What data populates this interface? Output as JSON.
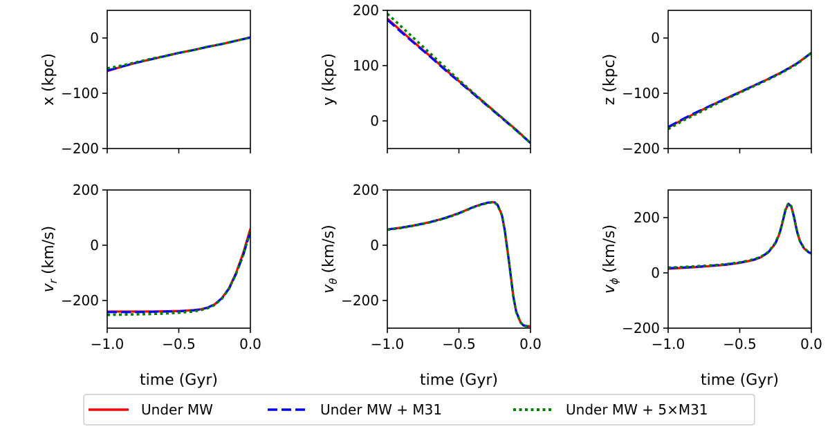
{
  "legend": {
    "entries": [
      {
        "label": "Under MW",
        "color": "#ff0000",
        "style": "solid"
      },
      {
        "label": "Under MW + M31",
        "color": "#0000ff",
        "style": "dashed"
      },
      {
        "label": "Under MW + 5×M31",
        "color": "#008000",
        "style": "dotted"
      }
    ],
    "placement": "bottom-center"
  },
  "chart_data": [
    {
      "type": "line",
      "ylabel": "x (kpc)",
      "xlabel": "",
      "xlim": [
        -1.0,
        0.0
      ],
      "ylim": [
        -200,
        50
      ],
      "xticks": [
        -1.0,
        -0.5,
        0.0
      ],
      "yticks": [
        -200,
        -100,
        0
      ],
      "ytick_labels": [
        "−200",
        "−100",
        "0"
      ],
      "xtick_labels": [],
      "x": [
        -1.0,
        -0.9,
        -0.8,
        -0.7,
        -0.6,
        -0.5,
        -0.4,
        -0.3,
        -0.2,
        -0.1,
        0.0
      ],
      "series": [
        {
          "values": [
            -60,
            -52,
            -45,
            -39,
            -33,
            -27,
            -22,
            -16,
            -11,
            -5,
            1
          ]
        },
        {
          "values": [
            -59,
            -52,
            -45,
            -39,
            -33,
            -27,
            -22,
            -16,
            -11,
            -5,
            1
          ]
        },
        {
          "values": [
            -55,
            -50,
            -44,
            -38,
            -33,
            -27,
            -22,
            -16,
            -11,
            -5,
            1
          ]
        }
      ]
    },
    {
      "type": "line",
      "ylabel": "y (kpc)",
      "xlabel": "",
      "xlim": [
        -1.0,
        0.0
      ],
      "ylim": [
        -50,
        200
      ],
      "xticks": [
        -1.0,
        -0.5,
        0.0
      ],
      "yticks": [
        0,
        100,
        200
      ],
      "ytick_labels": [
        "0",
        "100",
        "200"
      ],
      "xtick_labels": [],
      "x": [
        -1.0,
        -0.9,
        -0.8,
        -0.7,
        -0.6,
        -0.5,
        -0.4,
        -0.3,
        -0.2,
        -0.1,
        0.0
      ],
      "series": [
        {
          "values": [
            185,
            162,
            139,
            117,
            94,
            72,
            50,
            28,
            6,
            -16,
            -40
          ]
        },
        {
          "values": [
            183,
            160,
            138,
            116,
            93,
            71,
            49,
            27,
            5,
            -17,
            -40
          ]
        },
        {
          "values": [
            194,
            170,
            146,
            122,
            98,
            74,
            51,
            28,
            6,
            -17,
            -40
          ]
        }
      ]
    },
    {
      "type": "line",
      "ylabel": "z (kpc)",
      "xlabel": "",
      "xlim": [
        -1.0,
        0.0
      ],
      "ylim": [
        -200,
        50
      ],
      "xticks": [
        -1.0,
        -0.5,
        0.0
      ],
      "yticks": [
        -200,
        -100,
        0
      ],
      "ytick_labels": [
        "−200",
        "−100",
        "0"
      ],
      "xtick_labels": [],
      "x": [
        -1.0,
        -0.9,
        -0.8,
        -0.7,
        -0.6,
        -0.5,
        -0.4,
        -0.3,
        -0.2,
        -0.1,
        0.0
      ],
      "series": [
        {
          "values": [
            -162,
            -148,
            -135,
            -122,
            -110,
            -98,
            -86,
            -74,
            -61,
            -46,
            -27
          ]
        },
        {
          "values": [
            -161,
            -147,
            -134,
            -122,
            -110,
            -98,
            -86,
            -74,
            -61,
            -46,
            -27
          ]
        },
        {
          "values": [
            -165,
            -150,
            -137,
            -124,
            -111,
            -99,
            -87,
            -75,
            -62,
            -47,
            -27
          ]
        }
      ]
    },
    {
      "type": "line",
      "ylabel": "v_r (km/s)",
      "xlabel": "time (Gyr)",
      "xlim": [
        -1.0,
        0.0
      ],
      "ylim": [
        -300,
        200
      ],
      "xticks": [
        -1.0,
        -0.5,
        0.0
      ],
      "yticks": [
        -200,
        0,
        200
      ],
      "ytick_labels": [
        "−200",
        "0",
        "200"
      ],
      "xtick_labels": [
        "−1.0",
        "−0.5",
        "0.0"
      ],
      "x": [
        -1.0,
        -0.9,
        -0.8,
        -0.7,
        -0.6,
        -0.5,
        -0.4,
        -0.35,
        -0.3,
        -0.25,
        -0.2,
        -0.15,
        -0.1,
        -0.05,
        0.0
      ],
      "series": [
        {
          "values": [
            -240,
            -240,
            -240,
            -240,
            -239,
            -238,
            -235,
            -232,
            -226,
            -214,
            -192,
            -156,
            -100,
            -28,
            60
          ]
        },
        {
          "values": [
            -242,
            -242,
            -242,
            -241,
            -240,
            -239,
            -236,
            -232,
            -226,
            -214,
            -192,
            -158,
            -104,
            -36,
            50
          ]
        },
        {
          "values": [
            -252,
            -251,
            -250,
            -249,
            -247,
            -244,
            -240,
            -235,
            -228,
            -216,
            -194,
            -158,
            -104,
            -34,
            50
          ]
        }
      ]
    },
    {
      "type": "line",
      "ylabel": "v_θ (km/s)",
      "xlabel": "time (Gyr)",
      "xlim": [
        -1.0,
        0.0
      ],
      "ylim": [
        -300,
        200
      ],
      "xticks": [
        -1.0,
        -0.5,
        0.0
      ],
      "yticks": [
        -200,
        0,
        200
      ],
      "ytick_labels": [
        "−200",
        "0",
        "200"
      ],
      "xtick_labels": [
        "−1.0",
        "−0.5",
        "0.0"
      ],
      "x": [
        -1.0,
        -0.9,
        -0.8,
        -0.7,
        -0.6,
        -0.5,
        -0.45,
        -0.4,
        -0.35,
        -0.3,
        -0.27,
        -0.25,
        -0.23,
        -0.2,
        -0.18,
        -0.15,
        -0.12,
        -0.1,
        -0.07,
        -0.05,
        -0.02,
        0.0
      ],
      "series": [
        {
          "values": [
            57,
            64,
            73,
            84,
            98,
            116,
            127,
            138,
            147,
            154,
            156,
            155,
            146,
            110,
            55,
            -60,
            -185,
            -240,
            -278,
            -290,
            -293,
            -293
          ]
        },
        {
          "values": [
            57,
            64,
            73,
            84,
            98,
            116,
            127,
            138,
            147,
            154,
            156,
            155,
            146,
            110,
            55,
            -60,
            -185,
            -240,
            -278,
            -290,
            -293,
            -293
          ]
        },
        {
          "values": [
            56,
            63,
            72,
            83,
            97,
            115,
            126,
            137,
            146,
            153,
            155,
            154,
            145,
            109,
            54,
            -61,
            -186,
            -241,
            -279,
            -291,
            -294,
            -294
          ]
        }
      ]
    },
    {
      "type": "line",
      "ylabel": "v_ϕ (km/s)",
      "xlabel": "time (Gyr)",
      "xlim": [
        -1.0,
        0.0
      ],
      "ylim": [
        -200,
        300
      ],
      "xticks": [
        -1.0,
        -0.5,
        0.0
      ],
      "yticks": [
        -200,
        0,
        200
      ],
      "ytick_labels": [
        "−200",
        "0",
        "200"
      ],
      "xtick_labels": [
        "−1.0",
        "−0.5",
        "0.0"
      ],
      "x": [
        -1.0,
        -0.9,
        -0.8,
        -0.7,
        -0.6,
        -0.5,
        -0.4,
        -0.35,
        -0.3,
        -0.25,
        -0.22,
        -0.2,
        -0.18,
        -0.16,
        -0.14,
        -0.12,
        -0.1,
        -0.08,
        -0.05,
        -0.02,
        0.0
      ],
      "series": [
        {
          "values": [
            15,
            18,
            21,
            25,
            29,
            36,
            47,
            57,
            74,
            107,
            145,
            185,
            228,
            250,
            240,
            200,
            150,
            115,
            88,
            75,
            70
          ]
        },
        {
          "values": [
            17,
            19,
            22,
            26,
            30,
            37,
            48,
            58,
            75,
            108,
            146,
            186,
            229,
            250,
            240,
            200,
            150,
            115,
            88,
            75,
            70
          ]
        },
        {
          "values": [
            19,
            21,
            24,
            27,
            31,
            38,
            49,
            59,
            76,
            109,
            147,
            187,
            230,
            251,
            241,
            201,
            151,
            116,
            89,
            76,
            70
          ]
        }
      ]
    }
  ]
}
